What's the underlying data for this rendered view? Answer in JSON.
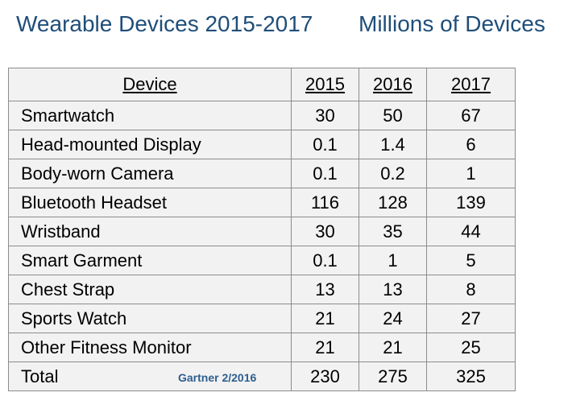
{
  "page": {
    "title_left": "Wearable Devices 2015-2017",
    "title_right": "Millions of Devices",
    "source_note": "Gartner  2/2016"
  },
  "colors": {
    "title": "#1f4e79",
    "source": "#2e5e8e",
    "table_fill": "#f2f2f2",
    "grid": "#8c8c8c"
  },
  "chart_data": {
    "type": "table",
    "columns": [
      "Device",
      "2015",
      "2016",
      "2017"
    ],
    "rows": [
      {
        "label": "Smartwatch",
        "values": [
          "30",
          "50",
          "67"
        ]
      },
      {
        "label": "Head-mounted Display",
        "values": [
          "0.1",
          "1.4",
          "6"
        ]
      },
      {
        "label": "Body-worn Camera",
        "values": [
          "0.1",
          "0.2",
          "1"
        ]
      },
      {
        "label": "Bluetooth Headset",
        "values": [
          "116",
          "128",
          "139"
        ]
      },
      {
        "label": "Wristband",
        "values": [
          "30",
          "35",
          "44"
        ]
      },
      {
        "label": "Smart Garment",
        "values": [
          "0.1",
          "1",
          "5"
        ]
      },
      {
        "label": "Chest Strap",
        "values": [
          "13",
          "13",
          "8"
        ]
      },
      {
        "label": "Sports Watch",
        "values": [
          "21",
          "24",
          "27"
        ]
      },
      {
        "label": "Other Fitness Monitor",
        "values": [
          "21",
          "21",
          "25"
        ]
      },
      {
        "label": "Total",
        "values": [
          "230",
          "275",
          "325"
        ]
      }
    ]
  }
}
